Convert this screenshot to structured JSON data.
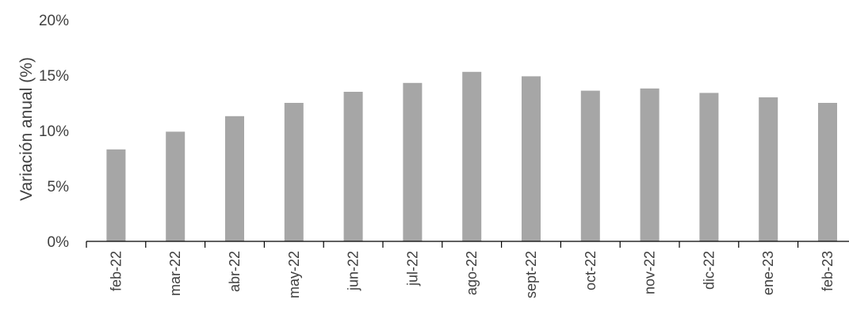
{
  "chart_data": {
    "type": "bar",
    "title": "",
    "xlabel": "",
    "ylabel": "Variación anual (%)",
    "ylim": [
      0,
      20
    ],
    "yticks": [
      0,
      5,
      10,
      15,
      20
    ],
    "ytick_labels": [
      "0%",
      "5%",
      "10%",
      "15%",
      "20%"
    ],
    "grid": false,
    "bar_color": "#a6a6a6",
    "categories": [
      "feb-22",
      "mar-22",
      "abr-22",
      "may-22",
      "jun-22",
      "jul-22",
      "ago-22",
      "sept-22",
      "oct-22",
      "nov-22",
      "dic-22",
      "ene-23",
      "feb-23"
    ],
    "values": [
      8.3,
      9.9,
      11.3,
      12.5,
      13.5,
      14.3,
      15.3,
      14.9,
      13.6,
      13.8,
      13.4,
      13.0,
      12.5
    ]
  }
}
